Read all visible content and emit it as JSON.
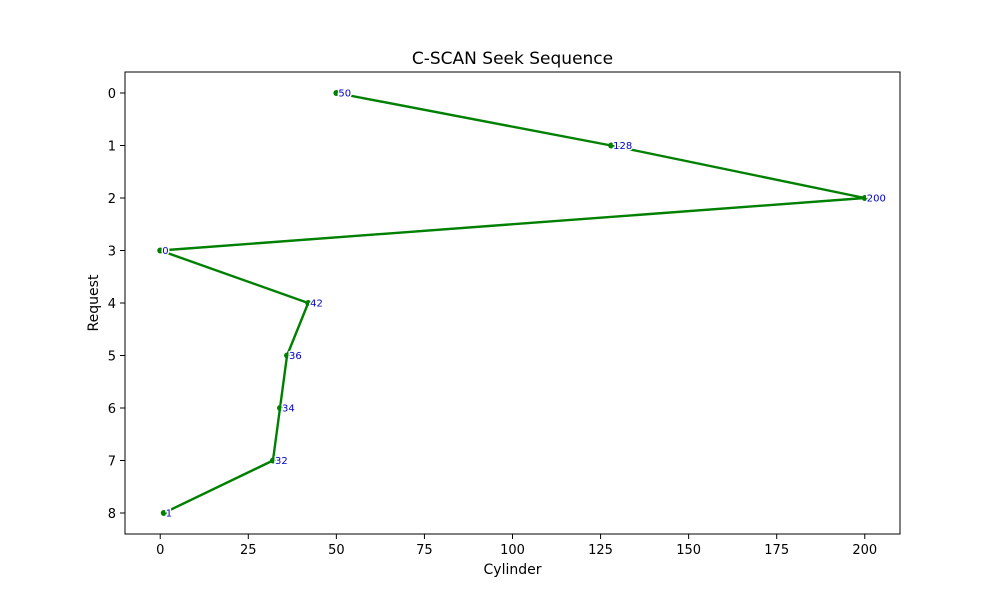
{
  "chart_data": {
    "type": "line",
    "title": "C-SCAN Seek Sequence",
    "xlabel": "Cylinder",
    "ylabel": "Request",
    "xlim": [
      -10,
      210
    ],
    "ylim": [
      8.4,
      -0.4
    ],
    "xticks": [
      0,
      25,
      50,
      75,
      100,
      125,
      150,
      175,
      200
    ],
    "yticks": [
      0,
      1,
      2,
      3,
      4,
      5,
      6,
      7,
      8
    ],
    "grid": false,
    "y_inverted": true,
    "line_color": "#008000",
    "point_label_color": "#0000cc",
    "points": [
      {
        "request": 0,
        "cylinder": 50,
        "label": "50"
      },
      {
        "request": 1,
        "cylinder": 128,
        "label": "128"
      },
      {
        "request": 2,
        "cylinder": 200,
        "label": "200"
      },
      {
        "request": 3,
        "cylinder": 0,
        "label": "0"
      },
      {
        "request": 4,
        "cylinder": 42,
        "label": "42"
      },
      {
        "request": 5,
        "cylinder": 36,
        "label": "36"
      },
      {
        "request": 6,
        "cylinder": 34,
        "label": "34"
      },
      {
        "request": 7,
        "cylinder": 32,
        "label": "32"
      },
      {
        "request": 8,
        "cylinder": 1,
        "label": "1"
      }
    ]
  }
}
